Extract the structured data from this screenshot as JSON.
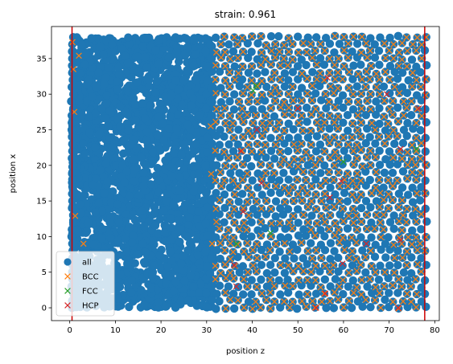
{
  "chart_data": {
    "type": "scatter",
    "title": "strain: 0.961",
    "xlabel": "position z",
    "ylabel": "position x",
    "xlim": [
      -4,
      81
    ],
    "ylim": [
      -1.8,
      39.5
    ],
    "xticks": [
      "0",
      "10",
      "20",
      "30",
      "40",
      "50",
      "60",
      "70",
      "80"
    ],
    "yticks": [
      "0",
      "5",
      "10",
      "15",
      "20",
      "25",
      "30",
      "35"
    ],
    "vlines": [
      {
        "x": 0.5,
        "color": "#cc0000"
      },
      {
        "x": 77.8,
        "color": "#cc0000"
      }
    ],
    "legend_position": "lower-left",
    "series": [
      {
        "name": "all",
        "marker": "circle",
        "color": "#1f77b4",
        "dense_region": {
          "x": [
            0.5,
            31.5
          ],
          "y": [
            0,
            38
          ]
        },
        "lattice_region": {
          "x": [
            30,
            78
          ],
          "y": [
            0,
            38
          ],
          "spacing": 2.0
        }
      },
      {
        "name": "BCC",
        "marker": "x",
        "color": "#ff7f0e",
        "lattice_region": {
          "x": [
            30,
            78
          ],
          "y": [
            0,
            38
          ],
          "spacing": 2.0
        },
        "points": [
          [
            0.6,
            37.3
          ],
          [
            2.0,
            35.4
          ],
          [
            1.0,
            27.5
          ],
          [
            1.2,
            12.9
          ],
          [
            3.0,
            9.0
          ],
          [
            0.8,
            33.5
          ],
          [
            31.2,
            9.0
          ],
          [
            30.9,
            25.5
          ],
          [
            31.0,
            18.8
          ]
        ]
      },
      {
        "name": "FCC",
        "marker": "x",
        "color": "#2ca02c",
        "points": [
          [
            40.2,
            30.5
          ],
          [
            40.8,
            31.2
          ],
          [
            60.0,
            20.5
          ],
          [
            76.0,
            22.3
          ],
          [
            36.5,
            9.0
          ],
          [
            44.0,
            10.5
          ]
        ]
      },
      {
        "name": "HCP",
        "marker": "x",
        "color": "#d62728",
        "points": [
          [
            37.5,
            22.0
          ],
          [
            41.0,
            25.0
          ],
          [
            50.0,
            28.0
          ],
          [
            56.5,
            32.3
          ],
          [
            36.0,
            6.0
          ],
          [
            36.5,
            3.0
          ],
          [
            54.0,
            0.0
          ],
          [
            56.0,
            2.0
          ],
          [
            59.5,
            17.8
          ],
          [
            59.8,
            6.2
          ],
          [
            65.0,
            9.0
          ],
          [
            69.5,
            30.0
          ],
          [
            72.5,
            22.3
          ],
          [
            72.0,
            0.0
          ],
          [
            72.5,
            9.5
          ],
          [
            76.5,
            28.0
          ],
          [
            38.0,
            13.5
          ],
          [
            42.0,
            17.5
          ],
          [
            57.0,
            15.5
          ]
        ]
      }
    ]
  }
}
